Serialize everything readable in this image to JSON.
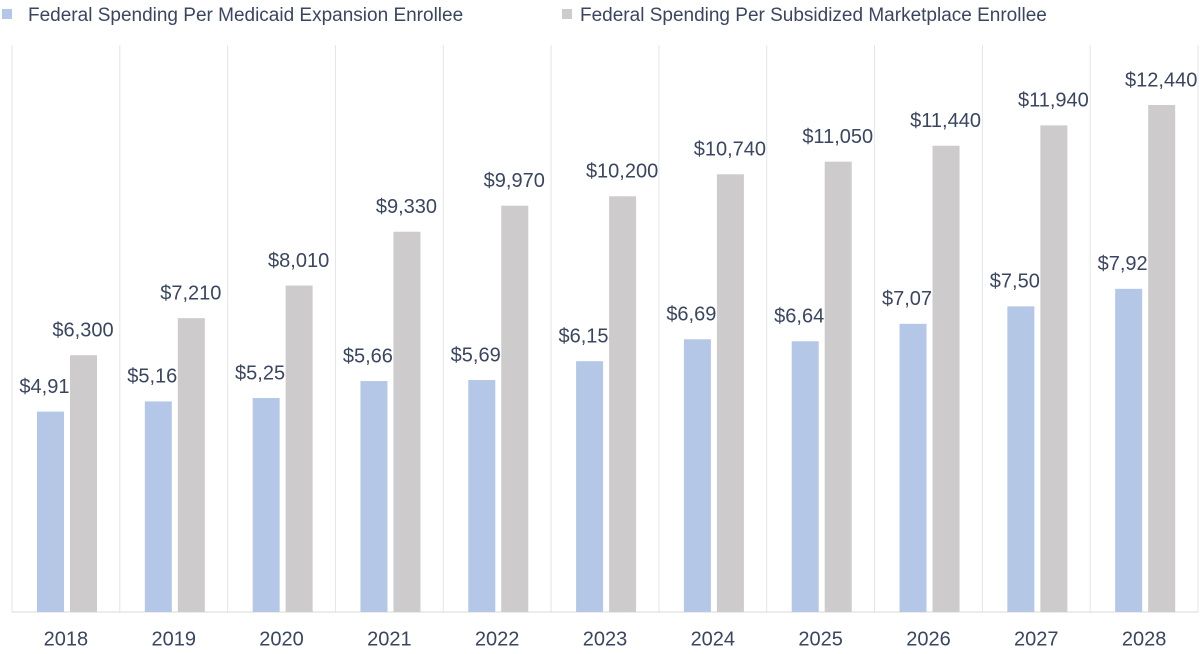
{
  "chart_data": {
    "type": "bar",
    "categories": [
      "2018",
      "2019",
      "2020",
      "2021",
      "2022",
      "2023",
      "2024",
      "2025",
      "2026",
      "2027",
      "2028"
    ],
    "series": [
      {
        "name": "Federal Spending Per Medicaid Expansion Enrollee",
        "color": "#b4c7e7",
        "values": [
          4917,
          5167,
          5250,
          5667,
          5692,
          6154,
          6692,
          6643,
          7071,
          7500,
          7929
        ],
        "value_labels": [
          "$4,917",
          "$5,167",
          "$5,250",
          "$5,667",
          "$5,692",
          "$6,154",
          "$6,692",
          "$6,643",
          "$7,071",
          "$7,500",
          "$7,929"
        ]
      },
      {
        "name": "Federal Spending Per Subsidized Marketplace Enrollee",
        "color": "#cdcbcb",
        "values": [
          6300,
          7210,
          8010,
          9330,
          9970,
          10200,
          10740,
          11050,
          11440,
          11940,
          12440
        ],
        "value_labels": [
          "$6,300",
          "$7,210",
          "$8,010",
          "$9,330",
          "$9,970",
          "$10,200",
          "$10,740",
          "$11,050",
          "$11,440",
          "$11,940",
          "$12,440"
        ]
      }
    ],
    "legend": "top-left",
    "grid": true
  }
}
